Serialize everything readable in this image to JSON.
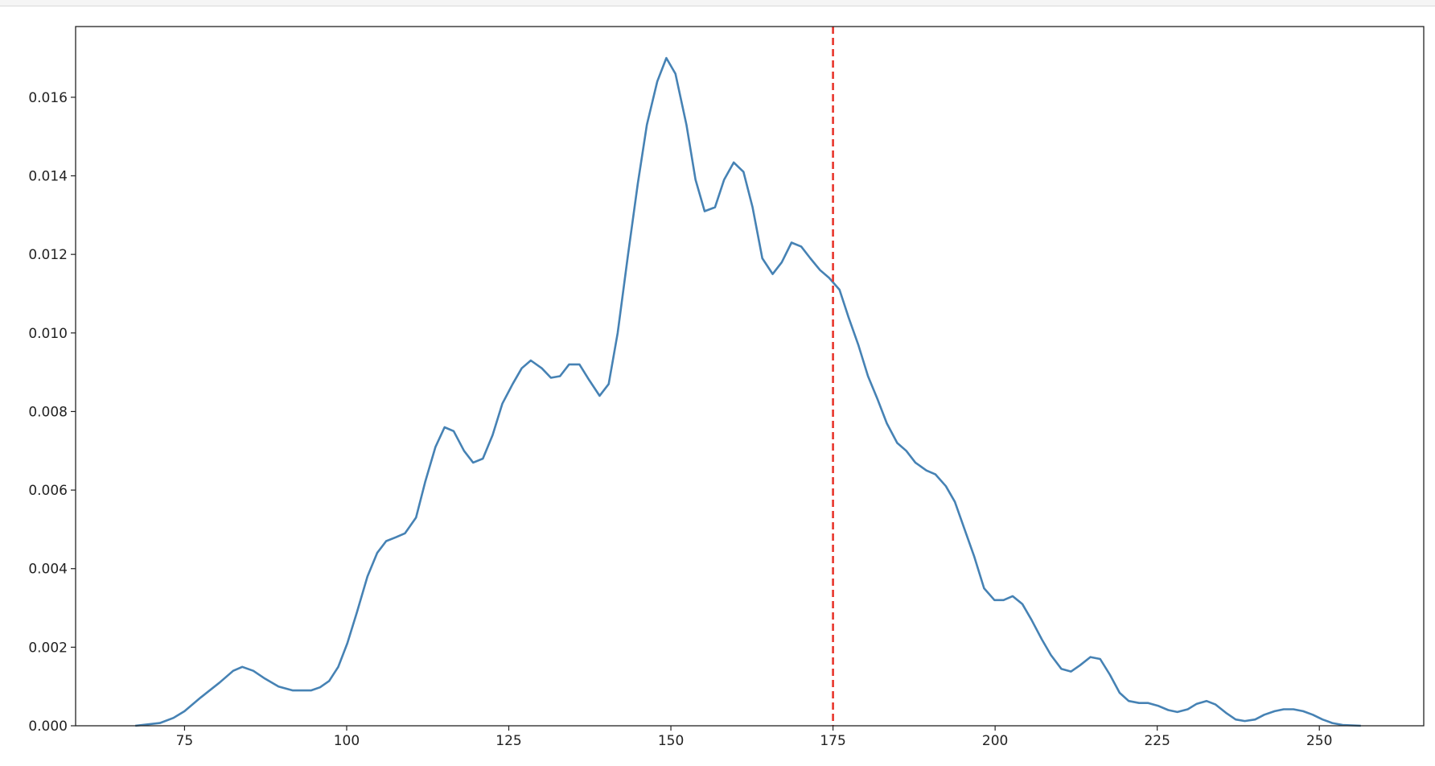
{
  "chart_data": {
    "type": "line",
    "title": "",
    "xlabel": "",
    "ylabel": "",
    "xlim": [
      58.2,
      266.1
    ],
    "ylim": [
      0,
      0.0178
    ],
    "xticks": [
      75,
      100,
      125,
      150,
      175,
      200,
      225,
      250
    ],
    "xtick_labels": [
      "75",
      "100",
      "125",
      "150",
      "175",
      "200",
      "225",
      "250"
    ],
    "yticks": [
      0,
      0.002,
      0.004,
      0.006,
      0.008,
      0.01,
      0.012,
      0.014,
      0.016
    ],
    "ytick_labels": [
      "0.000",
      "0.002",
      "0.004",
      "0.006",
      "0.008",
      "0.010",
      "0.012",
      "0.014",
      "0.016"
    ],
    "grid": false,
    "colors": {
      "line": "#4682b4",
      "vline": "#e8352b"
    },
    "vline": {
      "x": 175,
      "style": "dashed"
    },
    "series": [
      {
        "x": [
          67.4,
          71.2,
          73.3,
          75,
          77.5,
          80.4,
          82.5,
          83.9,
          85.6,
          87.4,
          89.5,
          91.7,
          94.5,
          95.9,
          97.3,
          98.7,
          100.1,
          101.6,
          103.2,
          104.7,
          106.1,
          107.6,
          109,
          110.7,
          112.1,
          113.7,
          115.1,
          116.5,
          118.1,
          119.5,
          121,
          122.5,
          124,
          125.6,
          127,
          128.4,
          130.1,
          131.5,
          132.9,
          134.3,
          135.9,
          137.4,
          139,
          140.4,
          141.8,
          143.4,
          144.9,
          146.3,
          147.9,
          149.3,
          150.7,
          152.4,
          153.8,
          155.2,
          156.8,
          158.2,
          159.7,
          161.2,
          162.6,
          164.1,
          165.7,
          167.1,
          168.6,
          170.1,
          171.5,
          173,
          174.4,
          176,
          177.4,
          178.9,
          180.4,
          181.9,
          183.3,
          184.9,
          186.3,
          187.7,
          189.4,
          190.8,
          192.4,
          193.8,
          195.3,
          196.8,
          198.3,
          199.9,
          201.3,
          202.7,
          204.2,
          205.6,
          207.2,
          208.6,
          210.2,
          211.7,
          213.1,
          214.7,
          216.2,
          217.7,
          219.2,
          220.6,
          222.2,
          223.6,
          225.1,
          226.7,
          228.1,
          229.7,
          231.1,
          232.6,
          234,
          235.6,
          237.1,
          238.5,
          240.1,
          241.5,
          243.1,
          244.5,
          246,
          247.5,
          249,
          250.5,
          252,
          253.6,
          256.4
        ],
        "y": [
          0,
          7e-05,
          0.0002,
          0.00037,
          0.00072,
          0.0011,
          0.0014,
          0.0015,
          0.0014,
          0.0012,
          0.001,
          0.0009,
          0.0009,
          0.00098,
          0.00114,
          0.0015,
          0.0021,
          0.0029,
          0.0038,
          0.0044,
          0.0047,
          0.0048,
          0.0049,
          0.0053,
          0.0062,
          0.0071,
          0.0076,
          0.0075,
          0.007,
          0.0067,
          0.0068,
          0.0074,
          0.0082,
          0.0087,
          0.0091,
          0.0093,
          0.0091,
          0.00886,
          0.0089,
          0.0092,
          0.0092,
          0.0088,
          0.0084,
          0.0087,
          0.01,
          0.012,
          0.0138,
          0.0153,
          0.0164,
          0.017,
          0.0166,
          0.0153,
          0.0139,
          0.0131,
          0.0132,
          0.0139,
          0.01434,
          0.0141,
          0.0132,
          0.0119,
          0.0115,
          0.0118,
          0.0123,
          0.0122,
          0.0119,
          0.0116,
          0.0114,
          0.0111,
          0.0104,
          0.0097,
          0.0089,
          0.0083,
          0.0077,
          0.0072,
          0.007,
          0.0067,
          0.0065,
          0.0064,
          0.0061,
          0.0057,
          0.005,
          0.0043,
          0.0035,
          0.0032,
          0.0032,
          0.0033,
          0.0031,
          0.0027,
          0.0022,
          0.0018,
          0.00145,
          0.00138,
          0.00154,
          0.00175,
          0.0017,
          0.0013,
          0.00084,
          0.00063,
          0.00058,
          0.00058,
          0.00051,
          0.0004,
          0.00035,
          0.00042,
          0.00056,
          0.00063,
          0.00054,
          0.00033,
          0.00016,
          0.00012,
          0.00016,
          0.00028,
          0.00037,
          0.00042,
          0.00042,
          0.00037,
          0.00028,
          0.00016,
          7e-05,
          2e-05,
          0
        ]
      }
    ]
  }
}
